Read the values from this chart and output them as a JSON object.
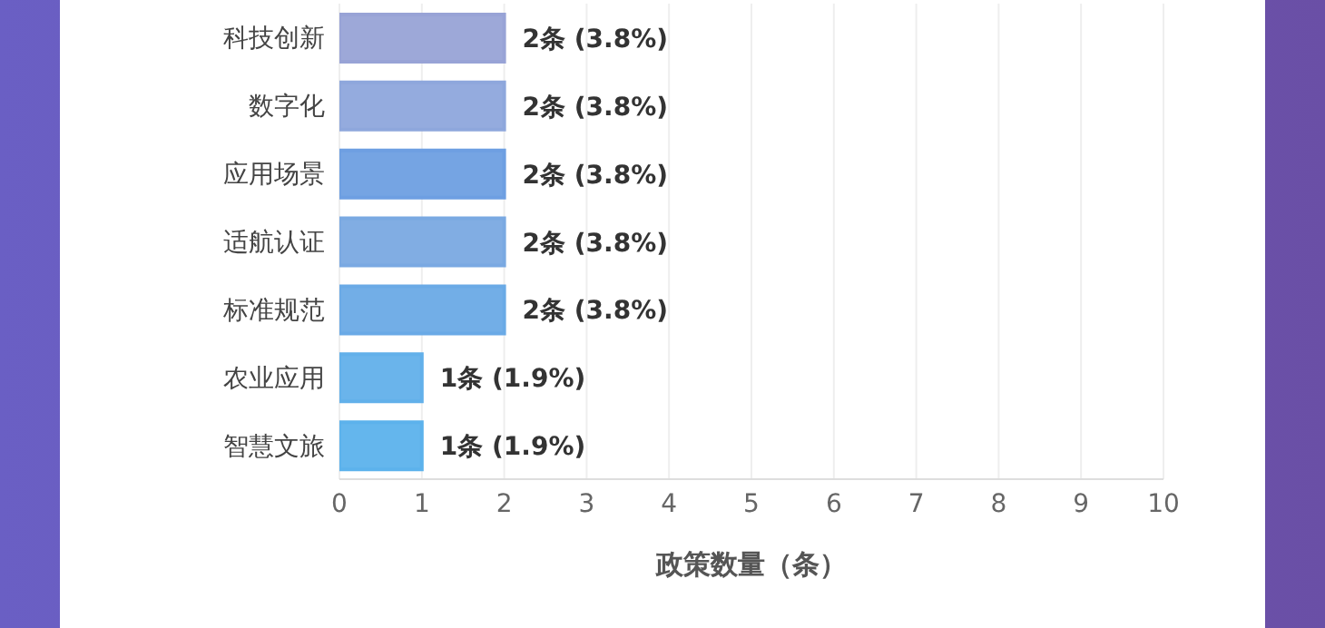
{
  "chart_data": {
    "type": "bar",
    "orientation": "horizontal",
    "categories": [
      "科技创新",
      "数字化",
      "应用场景",
      "适航认证",
      "标准规范",
      "农业应用",
      "智慧文旅"
    ],
    "values": [
      2,
      2,
      2,
      2,
      2,
      1,
      1
    ],
    "colors": [
      "#98a3d6",
      "#8ea7dc",
      "#6e9fe2",
      "#7aa9e2",
      "#6aaae6",
      "#62b0ea",
      "#5cb2ec"
    ],
    "value_labels": [
      "2条 (3.8%)",
      "2条 (3.8%)",
      "2条 (3.8%)",
      "2条 (3.8%)",
      "2条 (3.8%)",
      "1条 (1.9%)",
      "1条 (1.9%)"
    ],
    "xlim": [
      0,
      10
    ],
    "xticks": [
      0,
      1,
      2,
      3,
      4,
      5,
      6,
      7,
      8,
      9,
      10
    ],
    "xlabel": "政策数量（条）",
    "grid": "x",
    "legend": false
  }
}
